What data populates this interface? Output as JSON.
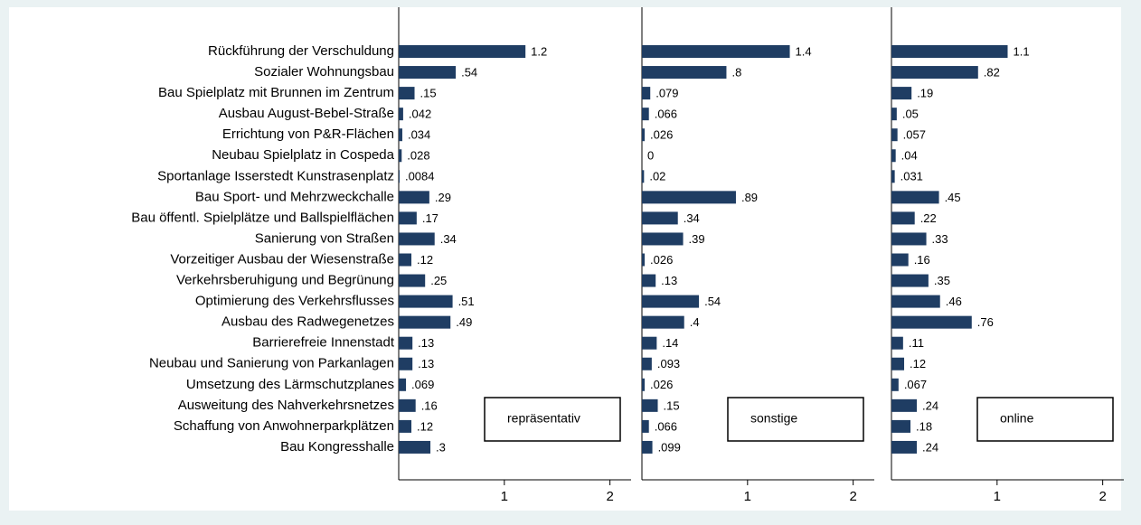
{
  "chart_data": {
    "type": "bar",
    "orientation": "horizontal",
    "color": "#1f3d63",
    "categories": [
      "Rückführung der Verschuldung",
      "Sozialer Wohnungsbau",
      "Bau Spielplatz mit Brunnen im Zentrum",
      "Ausbau August-Bebel-Straße",
      "Errichtung von P&R-Flächen",
      "Neubau Spielplatz in Cospeda",
      "Sportanlage Isserstedt Kunstrasenplatz",
      "Bau Sport- und Mehrzweckchalle",
      "Bau öffentl. Spielplätze und Ballspielflächen",
      "Sanierung von Straßen",
      "Vorzeitiger Ausbau der Wiesenstraße",
      "Verkehrsberuhigung und Begrünung",
      "Optimierung des Verkehrsflusses",
      "Ausbau des Radwegenetzes",
      "Barrierefreie Innenstadt",
      "Neubau und Sanierung von Parkanlagen",
      "Umsetzung des Lärmschutzplanes",
      "Ausweitung des Nahverkehrsnetzes",
      "Schaffung von Anwohnerparkplätzen",
      "Bau Kongresshalle"
    ],
    "series": [
      {
        "name": "repräsentativ",
        "values": [
          1.2,
          0.54,
          0.15,
          0.042,
          0.034,
          0.028,
          0.0084,
          0.29,
          0.17,
          0.34,
          0.12,
          0.25,
          0.51,
          0.49,
          0.13,
          0.13,
          0.069,
          0.16,
          0.12,
          0.3
        ],
        "value_labels": [
          "1.2",
          ".54",
          ".15",
          ".042",
          ".034",
          ".028",
          ".0084",
          ".29",
          ".17",
          ".34",
          ".12",
          ".25",
          ".51",
          ".49",
          ".13",
          ".13",
          ".069",
          ".16",
          ".12",
          ".3"
        ]
      },
      {
        "name": "sonstige",
        "values": [
          1.4,
          0.8,
          0.079,
          0.066,
          0.026,
          0,
          0.02,
          0.89,
          0.34,
          0.39,
          0.026,
          0.13,
          0.54,
          0.4,
          0.14,
          0.093,
          0.026,
          0.15,
          0.066,
          0.099
        ],
        "value_labels": [
          "1.4",
          ".8",
          ".079",
          ".066",
          ".026",
          "0",
          ".02",
          ".89",
          ".34",
          ".39",
          ".026",
          ".13",
          ".54",
          ".4",
          ".14",
          ".093",
          ".026",
          ".15",
          ".066",
          ".099"
        ]
      },
      {
        "name": "online",
        "values": [
          1.1,
          0.82,
          0.19,
          0.05,
          0.057,
          0.04,
          0.031,
          0.45,
          0.22,
          0.33,
          0.16,
          0.35,
          0.46,
          0.76,
          0.11,
          0.12,
          0.067,
          0.24,
          0.18,
          0.24
        ],
        "value_labels": [
          "1.1",
          ".82",
          ".19",
          ".05",
          ".057",
          ".04",
          ".031",
          ".45",
          ".22",
          ".33",
          ".16",
          ".35",
          ".46",
          ".76",
          ".11",
          ".12",
          ".067",
          ".24",
          ".18",
          ".24"
        ]
      }
    ],
    "xlim": [
      0,
      2.2
    ],
    "xticks": [
      1,
      2
    ]
  }
}
